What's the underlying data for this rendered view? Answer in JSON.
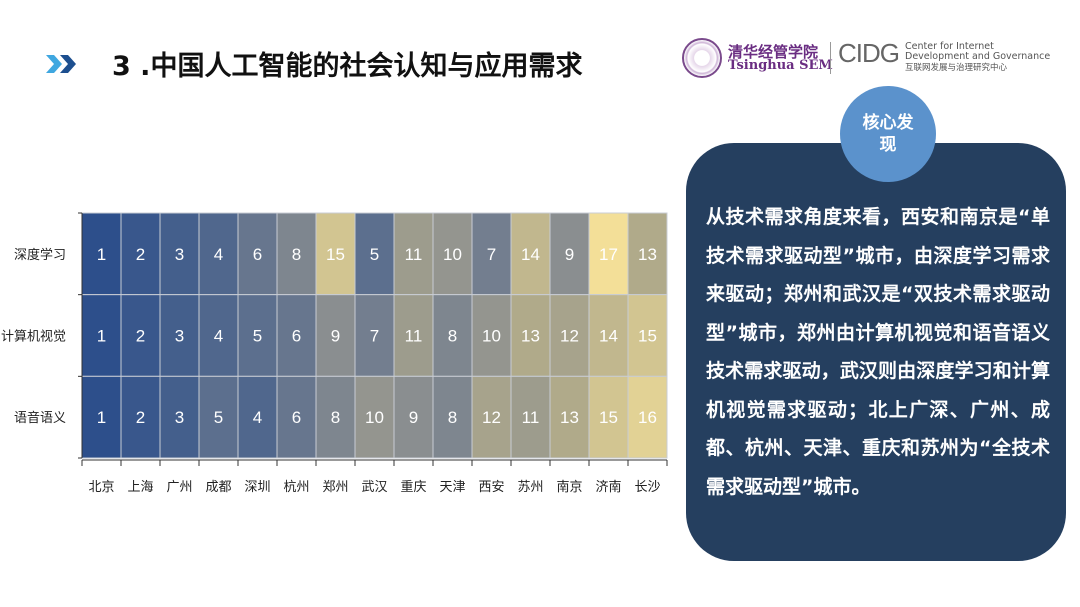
{
  "header": {
    "title": "3 .中国人工智能的社会认知与应用需求",
    "logo_sem_cn": "清华经管学院",
    "logo_sem_en": "Tsinghua SEM",
    "logo_cidg": "CIDG",
    "logo_cidg_en1": "Center for Internet",
    "logo_cidg_en2": "Development and Governance",
    "logo_cidg_cn": "互联网发展与治理研究中心"
  },
  "panel": {
    "badge": "核心发现",
    "text": "从技术需求角度来看，西安和南京是“单技术需求驱动型”城市，由深度学习需求来驱动；郑州和武汉是“双技术需求驱动型”城市，郑州由计算机视觉和语音语义技术需求驱动，武汉则由深度学习和计算机视觉需求驱动；北上广深、广州、成都、杭州、天津、重庆和苏州为“全技术需求驱动型”城市。"
  },
  "colors": {
    "low": "#2d4f8b",
    "mid": "#8a8e90",
    "high": "#f3df98",
    "panel": "#253f5f",
    "badge": "#5b92cc"
  },
  "chart_data": {
    "type": "heatmap",
    "x": [
      "北京",
      "上海",
      "广州",
      "成都",
      "深圳",
      "杭州",
      "郑州",
      "武汉",
      "重庆",
      "天津",
      "西安",
      "苏州",
      "南京",
      "济南",
      "长沙"
    ],
    "y": [
      "深度学习",
      "计算机视觉",
      "语音语义"
    ],
    "values": [
      [
        1,
        2,
        3,
        4,
        6,
        8,
        15,
        5,
        11,
        10,
        7,
        14,
        9,
        17,
        13
      ],
      [
        1,
        2,
        3,
        4,
        5,
        6,
        9,
        7,
        11,
        8,
        10,
        13,
        12,
        14,
        15
      ],
      [
        1,
        2,
        3,
        5,
        4,
        6,
        8,
        10,
        9,
        8,
        12,
        11,
        13,
        15,
        16
      ]
    ],
    "value_range": [
      1,
      17
    ]
  }
}
